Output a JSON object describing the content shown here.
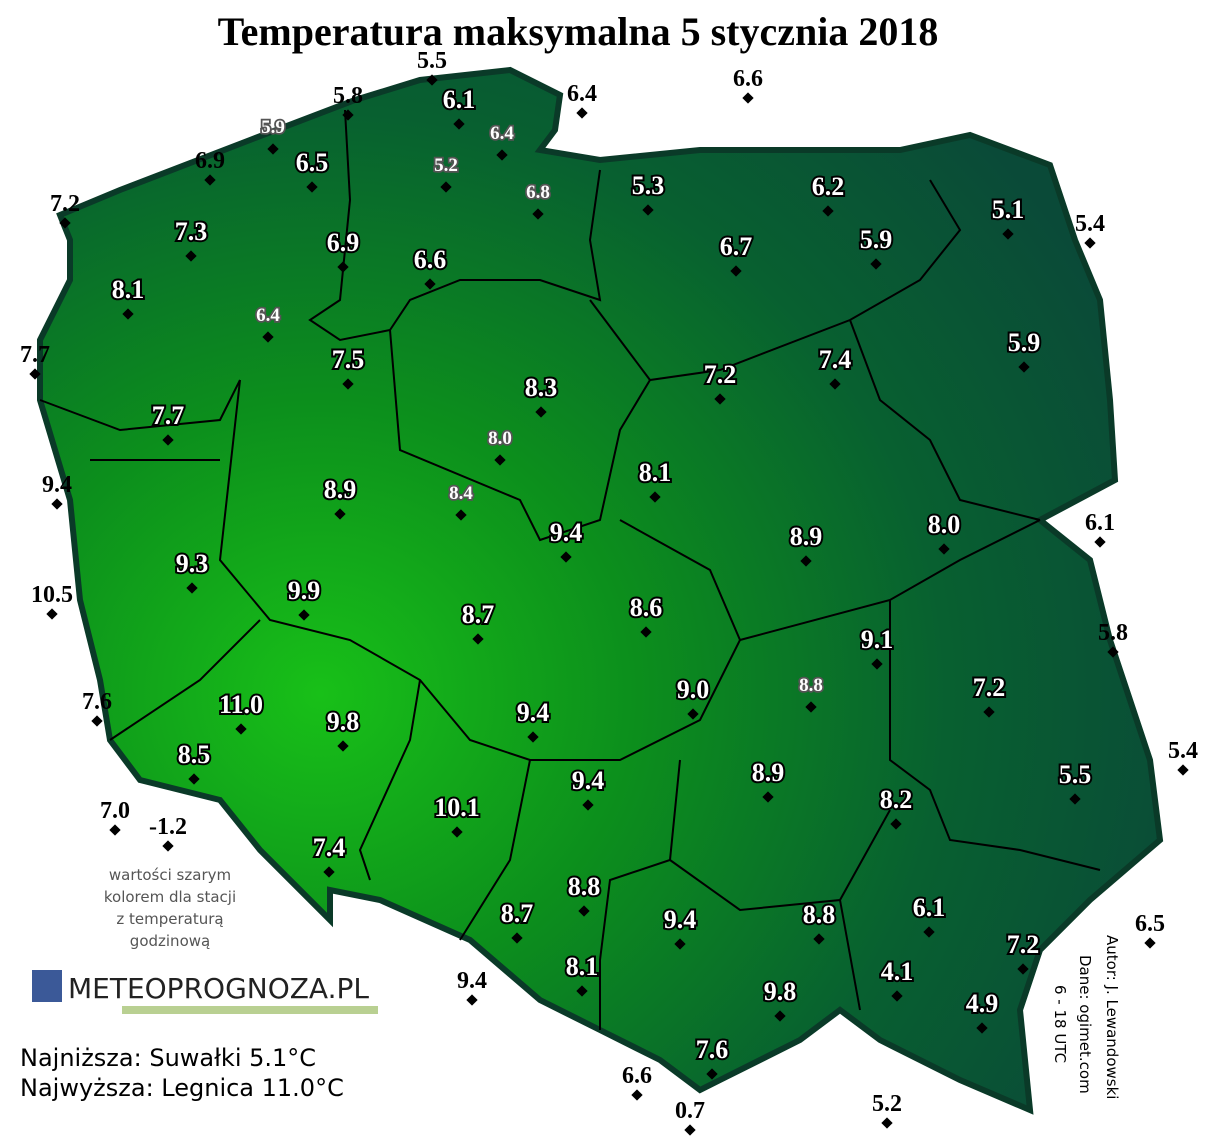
{
  "title": "Temperatura maksymalna 5 stycznia 2018",
  "stations": [
    "6.1",
    "6.5",
    "7.3",
    "6.9",
    "6.6",
    "8.1",
    "5.3",
    "6.2",
    "5.1",
    "6.7",
    "5.9",
    "5.9",
    "7.5",
    "8.3",
    "7.2",
    "7.4",
    "7.7",
    "8.1",
    "8.9",
    "9.4",
    "8.9",
    "8.0",
    "9.3",
    "9.9",
    "8.7",
    "8.6",
    "9.1",
    "7.2",
    "11.0",
    "9.0",
    "9.8",
    "9.4",
    "8.5",
    "5.5",
    "9.4",
    "8.9",
    "8.2",
    "10.1",
    "7.4",
    "8.8",
    "8.7",
    "9.4",
    "8.8",
    "6.1",
    "7.2",
    "8.1",
    "4.1",
    "9.8",
    "4.9",
    "7.6"
  ],
  "hourly_stations": [
    "5.9",
    "6.4",
    "5.2",
    "6.8",
    "6.4",
    "8.0",
    "8.4",
    "8.8"
  ],
  "outside_stations": [
    "5.5",
    "5.8",
    "6.4",
    "6.6",
    "6.9",
    "7.2",
    "7.7",
    "9.4",
    "10.5",
    "7.6",
    "7.0",
    "-1.2",
    "0.7",
    "6.6",
    "5.2",
    "6.5",
    "5.4",
    "5.8",
    "6.1",
    "5.4",
    "9.4"
  ],
  "note": [
    "wartości szarym",
    "kolorem dla stacji",
    "z temperaturą",
    "godzinową"
  ],
  "logo": "METEOPROGNOZA.PL",
  "extremes": [
    "Najniższa: Suwałki 5.1°C",
    "Najwyższa: Legnica 11.0°C"
  ],
  "credits": [
    "Autor: J. Lewandowski",
    "Dane: ogimet.com",
    "6 - 18 UTC"
  ]
}
